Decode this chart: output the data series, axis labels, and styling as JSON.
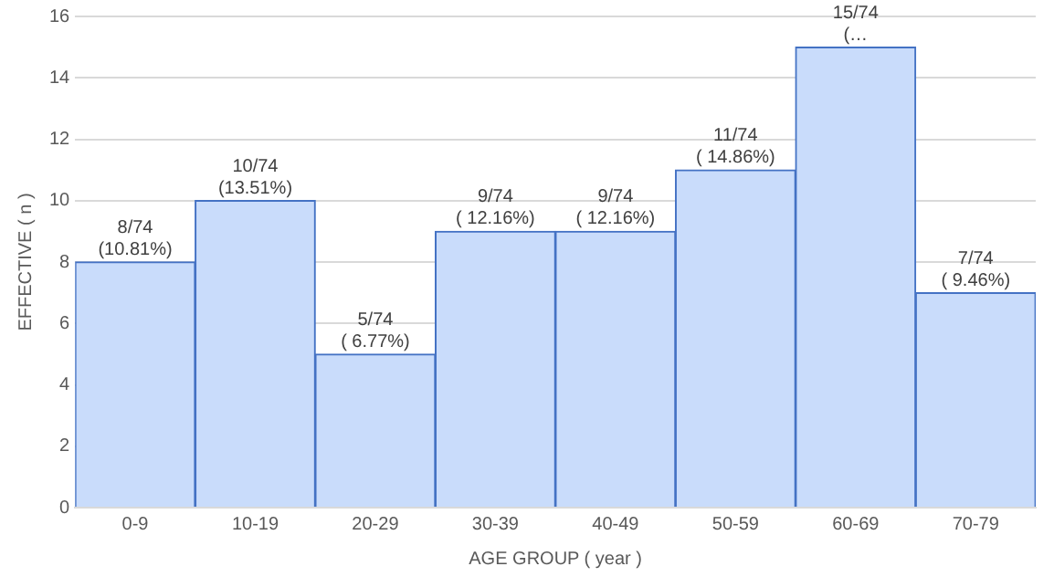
{
  "chart_data": {
    "type": "bar",
    "xlabel": "AGE GROUP ( year )",
    "ylabel": "EFFECTIVE ( n )",
    "categories": [
      "0-9",
      "10-19",
      "20-29",
      "30-39",
      "40-49",
      "50-59",
      "60-69",
      "70-79"
    ],
    "values": [
      8,
      10,
      5,
      9,
      9,
      11,
      15,
      7
    ],
    "value_labels": [
      "8/74 (10.81%)",
      "10/74 (13.51%)",
      "5/74 ( 6.77%)",
      "9/74 ( 12.16%)",
      "9/74 ( 12.16%)",
      "11/74 ( 14.86%)",
      "15/74 (…",
      "7/74 ( 9.46%)"
    ],
    "color": "#c9dcfb",
    "ylim": [
      0,
      16
    ],
    "yticks": [
      0,
      2,
      4,
      6,
      8,
      10,
      12,
      14,
      16
    ],
    "grid": "y",
    "legend": false
  }
}
